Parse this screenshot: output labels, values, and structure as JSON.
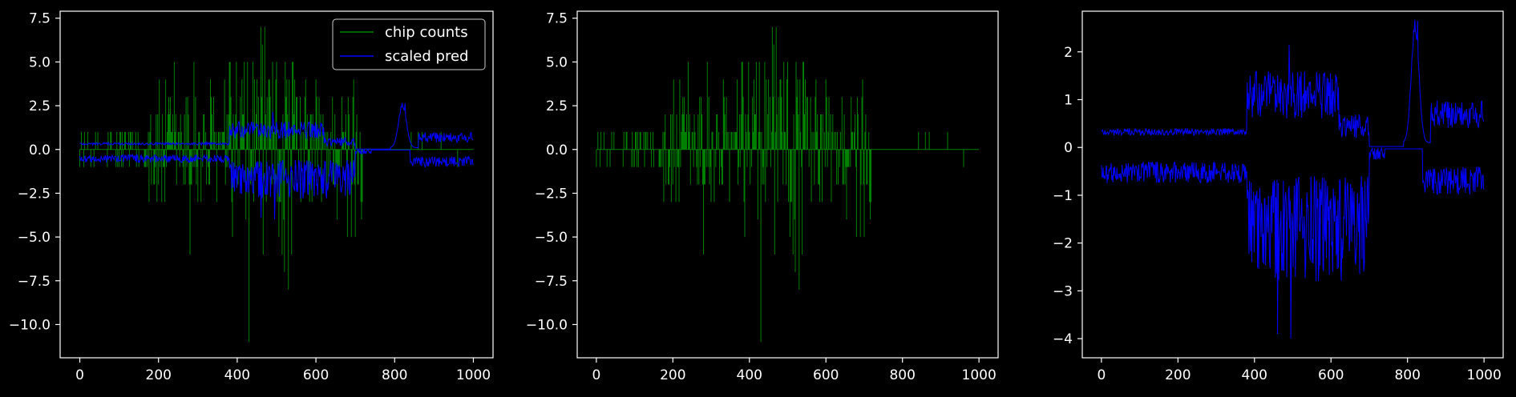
{
  "figure": {
    "background": "#000000",
    "axis_color": "#ffffff",
    "text_color": "#ffffff"
  },
  "chart_data": [
    {
      "type": "line",
      "title": "",
      "xlabel": "",
      "ylabel": "",
      "xlim": [
        -50,
        1050
      ],
      "ylim": [
        -11.9,
        7.9
      ],
      "xticks": [
        0,
        200,
        400,
        600,
        800,
        1000
      ],
      "yticks": [
        -10.0,
        -7.5,
        -5.0,
        -2.5,
        0.0,
        2.5,
        5.0,
        7.5
      ],
      "xtick_labels": [
        "0",
        "200",
        "400",
        "600",
        "800",
        "1000"
      ],
      "ytick_labels": [
        "−10.0",
        "−7.5",
        "−5.0",
        "−2.5",
        "0.0",
        "2.5",
        "5.0",
        "7.5"
      ],
      "grid": false,
      "legend": {
        "placement": "top-right",
        "entries": [
          "chip counts",
          "scaled pred"
        ]
      },
      "series": [
        {
          "name": "chip counts",
          "color": "#008000",
          "kind": "discrete-signed",
          "x_range": [
            0,
            1000
          ],
          "description": "integer-valued signal, small (±1) at the ends, large around x=180-720, extremes 7 near x=460 and -11 near x=430; mostly 0 beyond x=720 with occasional ±1"
        },
        {
          "name": "scaled pred",
          "color": "#0000ff",
          "kind": "band-signed",
          "x_range": [
            0,
            1000
          ],
          "description": "upper and lower noisy bands around 0; upper ~0.3 rising to ~1.5 near x=400-520, near 0 at x=700-790, bump to ~2.6 near x=820, ~0.5 to x=1000; lower mirror with dips to ~-3.5"
        }
      ]
    },
    {
      "type": "line",
      "title": "",
      "xlabel": "",
      "ylabel": "",
      "xlim": [
        -50,
        1050
      ],
      "ylim": [
        -11.9,
        7.9
      ],
      "xticks": [
        0,
        200,
        400,
        600,
        800,
        1000
      ],
      "yticks": [
        -10.0,
        -7.5,
        -5.0,
        -2.5,
        0.0,
        2.5,
        5.0,
        7.5
      ],
      "xtick_labels": [
        "0",
        "200",
        "400",
        "600",
        "800",
        "1000"
      ],
      "ytick_labels": [
        "−10.0",
        "−7.5",
        "−5.0",
        "−2.5",
        "0.0",
        "2.5",
        "5.0",
        "7.5"
      ],
      "grid": false,
      "series": [
        {
          "color": "#008000",
          "kind": "discrete-signed",
          "x_range": [
            0,
            1000
          ]
        }
      ]
    },
    {
      "type": "line",
      "title": "",
      "xlabel": "",
      "ylabel": "",
      "xlim": [
        -50,
        1050
      ],
      "ylim": [
        -4.4,
        2.85
      ],
      "xticks": [
        0,
        200,
        400,
        600,
        800,
        1000
      ],
      "yticks": [
        -4,
        -3,
        -2,
        -1,
        0,
        1,
        2
      ],
      "xtick_labels": [
        "0",
        "200",
        "400",
        "600",
        "800",
        "1000"
      ],
      "ytick_labels": [
        "−4",
        "−3",
        "−2",
        "−1",
        "0",
        "1",
        "2"
      ],
      "grid": false,
      "series": [
        {
          "color": "#0000ff",
          "kind": "band-signed",
          "x_range": [
            0,
            1000
          ],
          "description": "upper band ~0.2-0.5 for x<380, rising to ~1-2.2 for x=400-620, ~0 near x=700-790, peak ~2.6 at x=820, ~0.5-1.3 for x=860-1000; lower band ~-0.4 to -0.9 for x<380, dipping to -2 to -4 for x=420-700, ~0 near x=700-830, ~-0.5 to -1.2 for x=850-1000"
        }
      ]
    }
  ]
}
